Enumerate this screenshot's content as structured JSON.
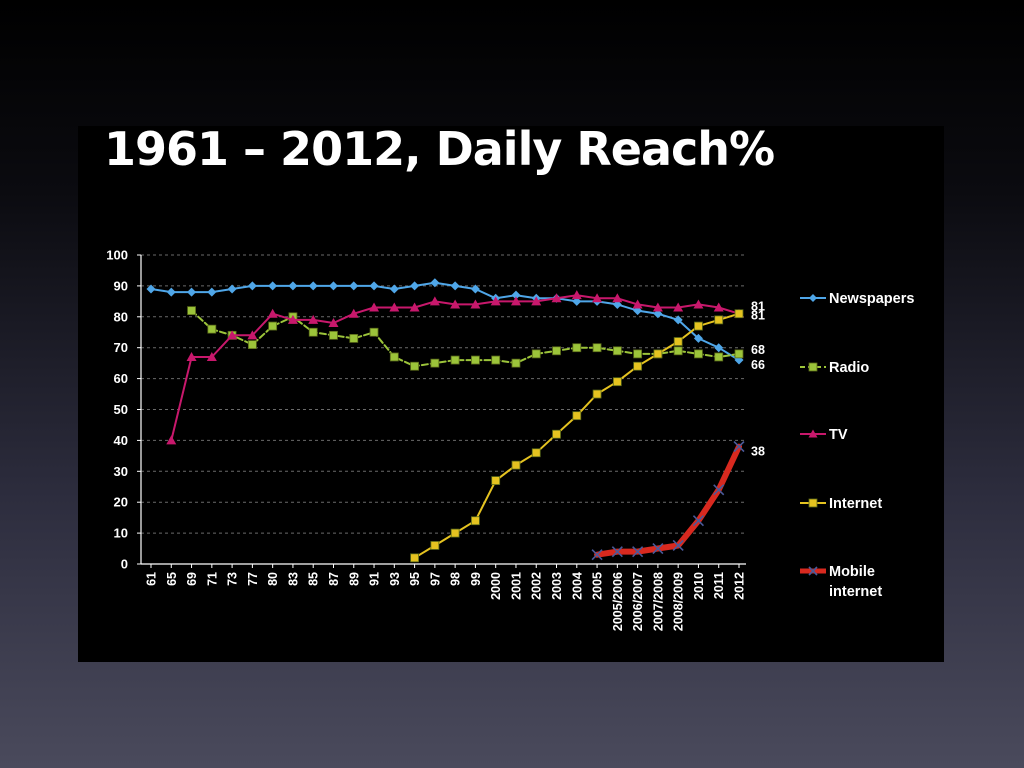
{
  "slide": {
    "title": "1961 – 2012, Daily Reach%"
  },
  "chart_data": {
    "type": "line",
    "title": "1961 – 2012, Daily Reach%",
    "xlabel": "",
    "ylabel": "",
    "ylim": [
      0,
      100
    ],
    "yticks": [
      0,
      10,
      20,
      30,
      40,
      50,
      60,
      70,
      80,
      90,
      100
    ],
    "grid": true,
    "legend": "right",
    "categories": [
      "61",
      "65",
      "69",
      "71",
      "73",
      "77",
      "80",
      "83",
      "85",
      "87",
      "89",
      "91",
      "93",
      "95",
      "97",
      "98",
      "99",
      "2000",
      "2001",
      "2002",
      "2003",
      "2004",
      "2005",
      "2005/2006",
      "2006/2007",
      "2007/2008",
      "2008/2009",
      "2010",
      "2011",
      "2012"
    ],
    "series": [
      {
        "name": "Newspapers",
        "color": "#4fa6e8",
        "marker": "diamond",
        "values": [
          89,
          88,
          88,
          88,
          89,
          90,
          90,
          90,
          90,
          90,
          90,
          90,
          89,
          90,
          91,
          90,
          89,
          86,
          87,
          86,
          86,
          85,
          85,
          84,
          82,
          81,
          79,
          73,
          70,
          66
        ]
      },
      {
        "name": "Radio",
        "color": "#9cc43a",
        "marker": "square",
        "dash": true,
        "values": [
          null,
          null,
          82,
          76,
          74,
          71,
          77,
          80,
          75,
          74,
          73,
          75,
          67,
          64,
          65,
          66,
          66,
          66,
          65,
          68,
          69,
          70,
          70,
          69,
          68,
          68,
          69,
          68,
          67,
          68
        ]
      },
      {
        "name": "TV",
        "color": "#c8186c",
        "marker": "triangle",
        "values": [
          null,
          40,
          67,
          67,
          74,
          74,
          81,
          79,
          79,
          78,
          81,
          83,
          83,
          83,
          85,
          84,
          84,
          85,
          85,
          85,
          86,
          87,
          86,
          86,
          84,
          83,
          83,
          84,
          83,
          81
        ]
      },
      {
        "name": "Internet",
        "color": "#e5c320",
        "marker": "square",
        "values": [
          null,
          null,
          null,
          null,
          null,
          null,
          null,
          null,
          null,
          null,
          null,
          null,
          null,
          2,
          6,
          10,
          14,
          27,
          32,
          36,
          42,
          48,
          55,
          59,
          64,
          68,
          72,
          77,
          79,
          81
        ]
      },
      {
        "name": "Mobile internet",
        "color": "#d8291f",
        "marker": "x",
        "thick": true,
        "values": [
          null,
          null,
          null,
          null,
          null,
          null,
          null,
          null,
          null,
          null,
          null,
          null,
          null,
          null,
          null,
          null,
          null,
          null,
          null,
          null,
          null,
          null,
          3,
          4,
          4,
          5,
          6,
          14,
          24,
          38
        ]
      }
    ],
    "end_labels": [
      {
        "series": "TV",
        "text": "81"
      },
      {
        "series": "Internet",
        "text": "81"
      },
      {
        "series": "Radio",
        "text": "68"
      },
      {
        "series": "Newspapers",
        "text": "66"
      },
      {
        "series": "Mobile internet",
        "text": "38"
      }
    ]
  }
}
